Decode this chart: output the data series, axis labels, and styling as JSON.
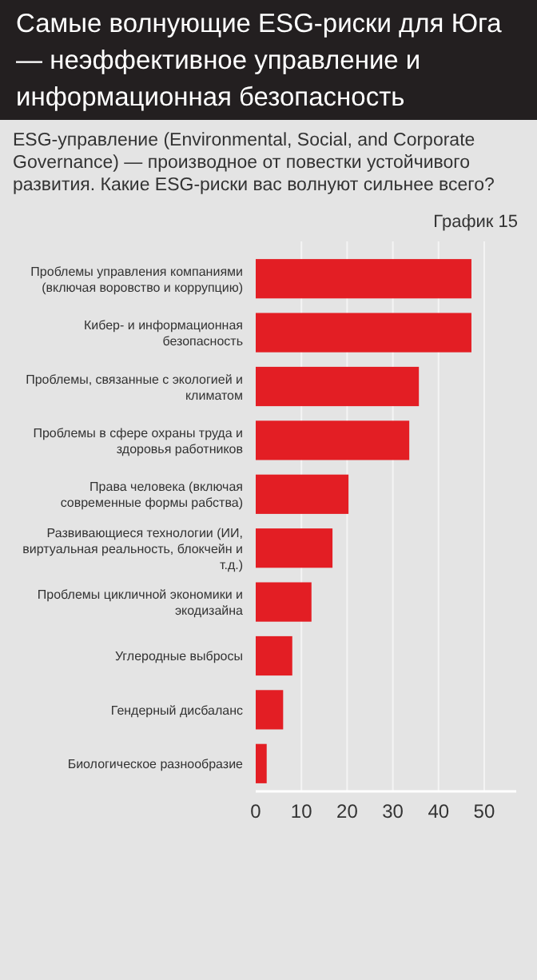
{
  "chart_data": {
    "type": "bar",
    "orientation": "horizontal",
    "title": "Самые волнующие ESG-риски для Юга — неэффективное управление и информационная безопасность",
    "subtitle": "ESG-управление (Environmental, Social, and Corporate Governance) — производное от повестки устойчивого развития. Какие ESG-риски вас волнуют сильнее всего?",
    "annotations": [
      "График 15"
    ],
    "categories": [
      "Проблемы управления компаниями (включая воровство и коррупцию)",
      "Кибер- и информационная безопасность",
      "Проблемы, связанные с экологией и климатом",
      "Проблемы в сфере охраны труда и здоровья работников",
      "Права человека (включая современные формы рабства)",
      "Развивающиеся технологии (ИИ, виртуальная реальность, блокчейн и т.д.)",
      "Проблемы цикличной экономики и экодизайна",
      "Углеродные выбросы",
      "Гендерный дисбаланс",
      "Биологическое разнообразие"
    ],
    "values": [
      47.2,
      47.2,
      35.7,
      33.6,
      20.3,
      16.8,
      12.2,
      8.0,
      6.0,
      2.4
    ],
    "color": "#e31e24",
    "xlim": [
      0,
      57
    ],
    "xticks": [
      0,
      10,
      20,
      30,
      40,
      50
    ],
    "grid": "x"
  }
}
